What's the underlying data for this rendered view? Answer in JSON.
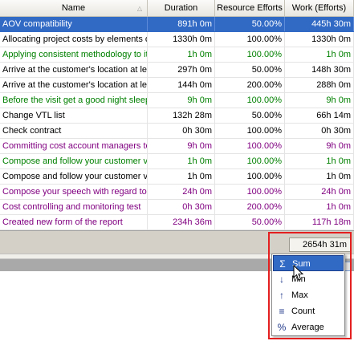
{
  "columns": [
    "Name",
    "Duration",
    "Resource Efforts",
    "Work (Efforts)"
  ],
  "rows": [
    {
      "name": "AOV compatibility",
      "duration": "891h 0m",
      "efforts": "50.00%",
      "work": "445h 30m",
      "color": "black",
      "selected": true
    },
    {
      "name": "Allocating project costs by elements of",
      "duration": "1330h 0m",
      "efforts": "100.00%",
      "work": "1330h 0m",
      "color": "black"
    },
    {
      "name": "Applying consistent methodology to its",
      "duration": "1h 0m",
      "efforts": "100.00%",
      "work": "1h 0m",
      "color": "green"
    },
    {
      "name": "Arrive at the customer's location at least",
      "duration": "297h 0m",
      "efforts": "50.00%",
      "work": "148h 30m",
      "color": "black"
    },
    {
      "name": "Arrive at the customer's location at least",
      "duration": "144h 0m",
      "efforts": "200.00%",
      "work": "288h 0m",
      "color": "black"
    },
    {
      "name": "Before the visit get a good night sleep",
      "duration": "9h 0m",
      "efforts": "100.00%",
      "work": "9h 0m",
      "color": "green"
    },
    {
      "name": "Change VTL list",
      "duration": "132h 28m",
      "efforts": "50.00%",
      "work": "66h 14m",
      "color": "black"
    },
    {
      "name": "Check contract",
      "duration": "0h 30m",
      "efforts": "100.00%",
      "work": "0h 30m",
      "color": "black"
    },
    {
      "name": "Committing cost account managers to",
      "duration": "9h 0m",
      "efforts": "100.00%",
      "work": "9h 0m",
      "color": "purple"
    },
    {
      "name": "Compose and follow your customer visit",
      "duration": "1h 0m",
      "efforts": "100.00%",
      "work": "1h 0m",
      "color": "green"
    },
    {
      "name": "Compose and follow your customer visit",
      "duration": "1h 0m",
      "efforts": "100.00%",
      "work": "1h 0m",
      "color": "black"
    },
    {
      "name": "Compose your speech with regard to",
      "duration": "24h 0m",
      "efforts": "100.00%",
      "work": "24h 0m",
      "color": "purple"
    },
    {
      "name": "Cost controlling and monitoring test",
      "duration": "0h 30m",
      "efforts": "200.00%",
      "work": "1h 0m",
      "color": "purple"
    },
    {
      "name": "Created new form of the report",
      "duration": "234h 36m",
      "efforts": "50.00%",
      "work": "117h 18m",
      "color": "purple"
    }
  ],
  "summary": {
    "value": "2654h 31m"
  },
  "menu": [
    {
      "label": "Sum",
      "icon": "Σ",
      "name": "sum-icon",
      "highlighted": true
    },
    {
      "label": "Min",
      "icon": "↓",
      "name": "min-icon"
    },
    {
      "label": "Max",
      "icon": "↑",
      "name": "max-icon"
    },
    {
      "label": "Count",
      "icon": "≡",
      "name": "count-icon"
    },
    {
      "label": "Average",
      "icon": "%",
      "name": "average-icon"
    }
  ],
  "colors": {
    "selection": "#316ac5",
    "highlight_frame": "#e41f1f",
    "green": "#008000",
    "purple": "#800080"
  }
}
